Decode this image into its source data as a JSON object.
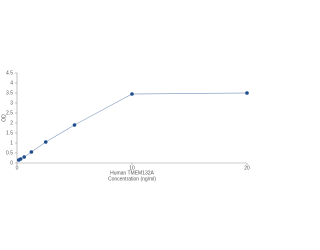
{
  "chart_data": {
    "type": "line",
    "xlabel": [
      "Human TMEM132A",
      "Concentration (ng/ml)"
    ],
    "ylabel": "OD",
    "x": [
      0.156,
      0.3125,
      0.625,
      1.25,
      2.5,
      5,
      10,
      20
    ],
    "values": [
      0.15,
      0.2,
      0.3,
      0.55,
      1.05,
      1.9,
      3.45,
      3.5
    ],
    "color": "#1f4e8c",
    "line_color": "#8fa3c4",
    "xlim": [
      0,
      20
    ],
    "xticks": [
      0,
      10,
      20
    ],
    "ylim": [
      0,
      4.5
    ],
    "yticks": [
      0,
      0.5,
      1,
      1.5,
      2,
      2.5,
      3,
      3.5,
      4,
      4.5
    ],
    "grid": false
  }
}
